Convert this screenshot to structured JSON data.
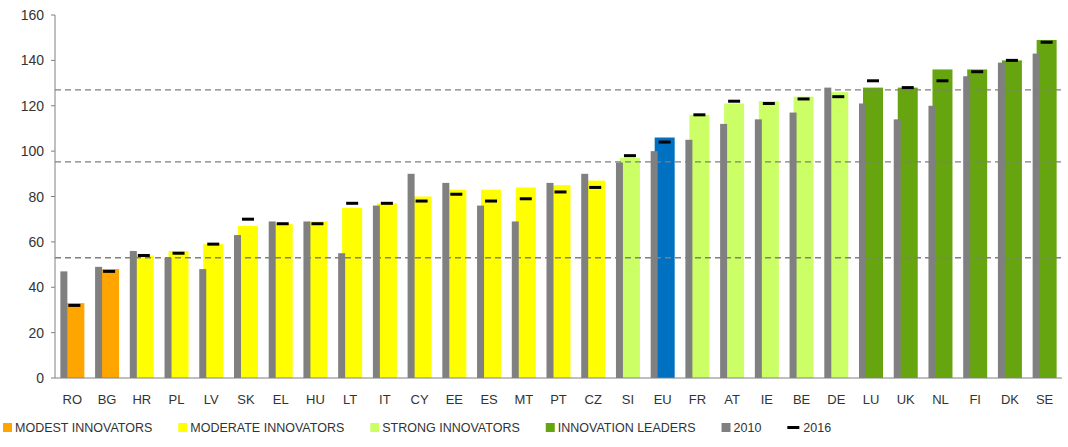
{
  "chart_data": {
    "type": "bar",
    "categories": [
      "RO",
      "BG",
      "HR",
      "PL",
      "LV",
      "SK",
      "EL",
      "HU",
      "LT",
      "IT",
      "CY",
      "EE",
      "ES",
      "MT",
      "PT",
      "CZ",
      "SI",
      "EU",
      "FR",
      "AT",
      "IE",
      "BE",
      "DE",
      "LU",
      "UK",
      "NL",
      "FI",
      "DK",
      "SE"
    ],
    "series": [
      {
        "type": "bar",
        "values": [
          33,
          48,
          54,
          56,
          59,
          67,
          68,
          69,
          75,
          77,
          80,
          83,
          83,
          84,
          85,
          87,
          97,
          106,
          116,
          121,
          122,
          124,
          126,
          128,
          128,
          136,
          136,
          140,
          149
        ],
        "colors": [
          "#ffa500",
          "#ffa500",
          "#ffff00",
          "#ffff00",
          "#ffff00",
          "#ffff00",
          "#ffff00",
          "#ffff00",
          "#ffff00",
          "#ffff00",
          "#ffff00",
          "#ffff00",
          "#ffff00",
          "#ffff00",
          "#ffff00",
          "#ffff00",
          "#ccff66",
          "#0070c0",
          "#ccff66",
          "#ccff66",
          "#ccff66",
          "#ccff66",
          "#ccff66",
          "#66a50f",
          "#66a50f",
          "#66a50f",
          "#66a50f",
          "#66a50f",
          "#66a50f"
        ]
      },
      {
        "name": "2010",
        "type": "bar",
        "color": "#808080",
        "values": [
          47,
          49,
          56,
          53,
          48,
          63,
          69,
          69,
          55,
          76,
          90,
          86,
          76,
          69,
          86,
          90,
          95,
          100,
          105,
          112,
          114,
          117,
          128,
          121,
          114,
          120,
          133,
          139,
          143
        ]
      },
      {
        "name": "2016",
        "type": "scatter",
        "color": "#000000",
        "marker": "dash",
        "values": [
          32,
          47,
          54,
          55,
          59,
          70,
          68,
          68,
          77,
          77,
          78,
          81,
          78,
          79,
          82,
          84,
          98,
          104,
          116,
          122,
          121,
          123,
          124,
          131,
          128,
          131,
          135,
          140,
          148
        ]
      }
    ],
    "groups": [
      {
        "name": "MODEST INNOVATORS",
        "color": "#ffa500"
      },
      {
        "name": "MODERATE INNOVATORS",
        "color": "#ffff00"
      },
      {
        "name": "STRONG INNOVATORS",
        "color": "#ccff66"
      },
      {
        "name": "INNOVATION LEADERS",
        "color": "#66a50f"
      }
    ],
    "reference_lines": [
      53,
      95.3,
      127
    ],
    "ylim": [
      0,
      160
    ],
    "yticks": [
      0,
      20,
      40,
      60,
      80,
      100,
      120,
      140,
      160
    ],
    "grid": false,
    "legend": "bottom"
  }
}
